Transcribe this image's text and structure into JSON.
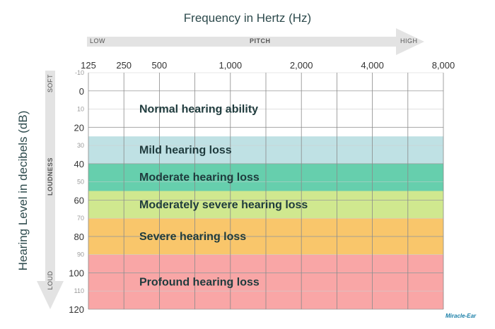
{
  "chart_data": {
    "type": "band-chart",
    "title": "Frequency in Hertz (Hz)",
    "ylabel": "Hearing Level in decibels (dB)",
    "x_ticks": [
      "125",
      "250",
      "500",
      "1,000",
      "2,000",
      "4,000",
      "8,000"
    ],
    "x_tick_columns": [
      0,
      1,
      2,
      4,
      6,
      8,
      10
    ],
    "x_columns": 10,
    "y_range": [
      -10,
      120
    ],
    "y_ticks": [
      -10,
      0,
      10,
      20,
      30,
      40,
      50,
      60,
      70,
      80,
      90,
      100,
      110,
      120
    ],
    "y_major_ticks": [
      0,
      20,
      40,
      60,
      80,
      100,
      120
    ],
    "grid": true,
    "pitch_arrow": {
      "low": "LOW",
      "label": "PITCH",
      "high": "HIGH"
    },
    "loudness_arrow": {
      "soft": "SOFT",
      "label": "LOUDNESS",
      "loud": "LOUD"
    },
    "bands": [
      {
        "name": "Normal hearing ability",
        "from": -10,
        "to": 25,
        "color": "#ffffff"
      },
      {
        "name": "Mild hearing loss",
        "from": 25,
        "to": 40,
        "color": "#bfe1e4"
      },
      {
        "name": "Moderate hearing loss",
        "from": 40,
        "to": 55,
        "color": "#66cfad"
      },
      {
        "name": "Moderately severe hearing loss",
        "from": 55,
        "to": 70,
        "color": "#d0e88f"
      },
      {
        "name": "Severe hearing loss",
        "from": 70,
        "to": 90,
        "color": "#f9c66b"
      },
      {
        "name": "Profound hearing loss",
        "from": 90,
        "to": 120,
        "color": "#f9a6a6"
      }
    ]
  },
  "logo": "Miracle-Ear"
}
